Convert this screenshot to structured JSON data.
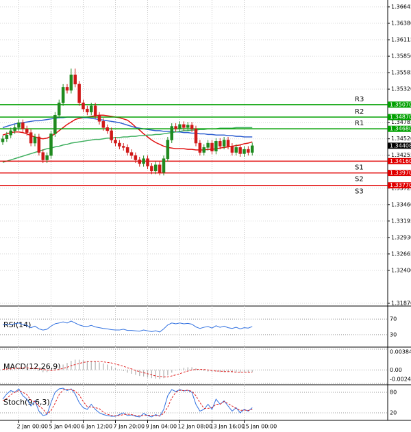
{
  "chart_data": {
    "type": "candlestick",
    "categories": [
      null,
      null,
      null,
      null,
      "2 Jan 00:00",
      null,
      null,
      null,
      null,
      null,
      null,
      null,
      "5 Jan 04:00",
      null,
      null,
      null,
      null,
      null,
      null,
      null,
      "6 Jan 12:00",
      null,
      null,
      null,
      null,
      null,
      null,
      null,
      "7 Jan 20:00",
      null,
      null,
      null,
      null,
      null,
      null,
      null,
      "9 Jan 04:00",
      null,
      null,
      null,
      null,
      null,
      null,
      null,
      "12 Jan 08:00",
      null,
      null,
      null,
      null,
      null,
      null,
      null,
      "13 Jan 16:00",
      null,
      null,
      null,
      null,
      null,
      null,
      null,
      "15 Jan 00:00",
      null,
      null
    ],
    "open": [
      1.3447,
      1.3452,
      1.3458,
      1.3465,
      1.347,
      1.3478,
      1.3468,
      1.3462,
      1.3445,
      1.3455,
      1.343,
      1.3418,
      1.3425,
      1.346,
      1.349,
      1.351,
      1.3535,
      1.353,
      1.3555,
      1.354,
      1.351,
      1.35,
      1.3495,
      1.3505,
      1.349,
      1.348,
      1.347,
      1.3465,
      1.345,
      1.3445,
      1.344,
      1.3438,
      1.343,
      1.3425,
      1.3418,
      1.3412,
      1.342,
      1.3408,
      1.34,
      1.341,
      1.3398,
      1.342,
      1.345,
      1.3472,
      1.3468,
      1.3475,
      1.347,
      1.3474,
      1.3468,
      1.3445,
      1.343,
      1.3438,
      1.3445,
      1.3432,
      1.3448,
      1.344,
      1.345,
      1.344,
      1.343,
      1.3438,
      1.3428,
      1.3435,
      1.343
    ],
    "high": [
      1.3457,
      1.3463,
      1.347,
      1.3475,
      1.3483,
      1.3483,
      1.3473,
      1.3467,
      1.346,
      1.346,
      1.3435,
      1.343,
      1.3465,
      1.3495,
      1.3515,
      1.354,
      1.354,
      1.3565,
      1.3565,
      1.3545,
      1.3515,
      1.3505,
      1.351,
      1.351,
      1.3495,
      1.3485,
      1.3475,
      1.347,
      1.3455,
      1.345,
      1.3445,
      1.3443,
      1.3435,
      1.343,
      1.3423,
      1.3425,
      1.3425,
      1.3413,
      1.3415,
      1.3415,
      1.3425,
      1.3455,
      1.3477,
      1.3477,
      1.348,
      1.348,
      1.3479,
      1.3479,
      1.3473,
      1.345,
      1.3443,
      1.345,
      1.345,
      1.3453,
      1.3453,
      1.3455,
      1.3455,
      1.3445,
      1.3443,
      1.3443,
      1.344,
      1.344,
      1.34458
    ],
    "low": [
      1.3442,
      1.3447,
      1.3453,
      1.346,
      1.3465,
      1.3463,
      1.3457,
      1.344,
      1.344,
      1.3425,
      1.3413,
      1.3413,
      1.342,
      1.3455,
      1.3485,
      1.3505,
      1.3525,
      1.3525,
      1.3535,
      1.3505,
      1.3495,
      1.349,
      1.349,
      1.3485,
      1.3475,
      1.3465,
      1.346,
      1.3445,
      1.344,
      1.3435,
      1.3433,
      1.3425,
      1.342,
      1.3413,
      1.3407,
      1.3407,
      1.3403,
      1.3395,
      1.3395,
      1.3393,
      1.3393,
      1.3415,
      1.3445,
      1.3463,
      1.3463,
      1.3465,
      1.3465,
      1.3463,
      1.344,
      1.3425,
      1.3425,
      1.3433,
      1.3427,
      1.3427,
      1.3435,
      1.3435,
      1.3435,
      1.3425,
      1.3425,
      1.3423,
      1.3423,
      1.3425,
      1.3425
    ],
    "close": [
      1.3452,
      1.3458,
      1.3465,
      1.347,
      1.3478,
      1.3468,
      1.3462,
      1.3445,
      1.3455,
      1.343,
      1.3418,
      1.3425,
      1.346,
      1.349,
      1.351,
      1.3535,
      1.353,
      1.3555,
      1.354,
      1.351,
      1.35,
      1.3495,
      1.3505,
      1.349,
      1.348,
      1.347,
      1.3465,
      1.345,
      1.3445,
      1.344,
      1.3438,
      1.343,
      1.3425,
      1.3418,
      1.3412,
      1.342,
      1.3408,
      1.34,
      1.341,
      1.3398,
      1.342,
      1.345,
      1.3472,
      1.3468,
      1.3475,
      1.347,
      1.3474,
      1.3468,
      1.3445,
      1.343,
      1.3438,
      1.3445,
      1.3432,
      1.3448,
      1.344,
      1.345,
      1.344,
      1.343,
      1.3438,
      1.3428,
      1.3435,
      1.343,
      1.34408
    ],
    "up_color": "#1f8a1f",
    "down_color": "#d01818",
    "ylim": [
      1.3187,
      1.36645
    ],
    "yticks": [
      1.36645,
      {
        "value": 1.3638,
        "label": "1.36380"
      },
      1.36115,
      {
        "value": 1.3585,
        "label": "1.35850"
      },
      1.35585,
      {
        "value": 1.3532,
        "label": "1.35320"
      },
      1.34785,
      {
        "value": 1.3452,
        "label": "1.34520"
      },
      1.34255,
      1.33725,
      {
        "value": 1.3346,
        "label": "1.33460"
      },
      1.33195,
      {
        "value": 1.3293,
        "label": "1.32930"
      },
      1.32665,
      {
        "value": 1.324,
        "label": "1.32400"
      },
      {
        "value": 1.3187,
        "label": "1.31870"
      }
    ],
    "grid": true,
    "overlays": [
      {
        "color": "#e01010",
        "values": [
          1.3458,
          1.346,
          1.3462,
          1.3463,
          1.3463,
          1.3462,
          1.346,
          1.3457,
          1.3455,
          1.3453,
          1.3452,
          1.3453,
          1.3456,
          1.346,
          1.3465,
          1.347,
          1.3475,
          1.3479,
          1.3483,
          1.3485,
          1.3486,
          1.3487,
          1.3488,
          1.3489,
          1.349,
          1.349,
          1.3489,
          1.3488,
          1.3487,
          1.3486,
          1.3484,
          1.3482,
          1.3477,
          1.3471,
          1.3466,
          1.346,
          1.3455,
          1.345,
          1.3446,
          1.3443,
          1.344,
          1.3438,
          1.3437,
          1.3436,
          1.3436,
          1.3436,
          1.3435,
          1.3435,
          1.3434,
          1.3434,
          1.3434,
          1.3435,
          1.3435,
          1.3436,
          1.3437,
          1.3438,
          1.3439,
          1.344,
          1.3441,
          1.3442,
          1.3444,
          1.3445,
          1.3447
        ]
      },
      {
        "color": "#3060d0",
        "values": [
          1.347,
          1.3472,
          1.3474,
          1.3476,
          1.3477,
          1.3478,
          1.3479,
          1.348,
          1.3481,
          1.3481,
          1.3482,
          1.3483,
          1.3484,
          1.3485,
          1.3486,
          1.3486,
          1.3487,
          1.3487,
          1.3487,
          1.3487,
          1.3486,
          1.3486,
          1.3485,
          1.3484,
          1.3483,
          1.3482,
          1.3481,
          1.348,
          1.3479,
          1.3478,
          1.3476,
          1.3474,
          1.3472,
          1.347,
          1.3469,
          1.3468,
          1.3467,
          1.3466,
          1.3465,
          1.3465,
          1.3464,
          1.3464,
          1.3464,
          1.3463,
          1.3463,
          1.3462,
          1.3462,
          1.3461,
          1.3461,
          1.346,
          1.346,
          1.3459,
          1.3459,
          1.3458,
          1.3458,
          1.3458,
          1.3457,
          1.3457,
          1.3456,
          1.3456,
          1.3455,
          1.3455,
          1.3455
        ]
      },
      {
        "color": "#40b060",
        "values": [
          1.3414,
          1.3416,
          1.3418,
          1.342,
          1.3422,
          1.3424,
          1.3426,
          1.3428,
          1.343,
          1.3432,
          1.3434,
          1.3436,
          1.3437,
          1.3439,
          1.344,
          1.3442,
          1.3443,
          1.3445,
          1.3446,
          1.3447,
          1.3448,
          1.3449,
          1.345,
          1.3451,
          1.3451,
          1.3452,
          1.3453,
          1.3453,
          1.3454,
          1.3454,
          1.3455,
          1.3455,
          1.3456,
          1.3456,
          1.3457,
          1.3457,
          1.3458,
          1.3458,
          1.3459,
          1.3459,
          1.346,
          1.3461,
          1.3462,
          1.3463,
          1.3464,
          1.3465,
          1.3465,
          1.3466,
          1.3466,
          1.3467,
          1.3467,
          1.3468,
          1.3468,
          1.3468,
          1.3469,
          1.3469,
          1.3469,
          1.3469,
          1.347,
          1.347,
          1.347,
          1.347,
          1.347
        ]
      }
    ],
    "levels": [
      {
        "name": "R3",
        "value": 1.3507,
        "label": "1.35070",
        "color": "#00a000"
      },
      {
        "name": "R2",
        "value": 1.3487,
        "label": "1.34870",
        "color": "#00a000"
      },
      {
        "name": "R1",
        "value": 1.3468,
        "label": "1.34680",
        "color": "#00a000"
      },
      {
        "name": "S1",
        "value": 1.3416,
        "label": "1.34160",
        "color": "#e00000"
      },
      {
        "name": "S2",
        "value": 1.3397,
        "label": "1.33970",
        "color": "#e00000"
      },
      {
        "name": "S3",
        "value": 1.3377,
        "label": "1.33770",
        "color": "#e00000"
      }
    ],
    "indicators": [
      {
        "title": "RSI(14)",
        "ylim": [
          0,
          100
        ],
        "yticks": [
          70,
          30
        ],
        "lines": [
          {
            "color": "#3070e0",
            "dash": false,
            "values": [
              55,
              57,
              56,
              58,
              60,
              56,
              54,
              48,
              52,
              45,
              42,
              44,
              52,
              58,
              60,
              63,
              60,
              65,
              60,
              55,
              52,
              51,
              54,
              50,
              48,
              46,
              45,
              43,
              42,
              42,
              44,
              41,
              41,
              40,
              39,
              42,
              40,
              38,
              40,
              37,
              45,
              55,
              60,
              58,
              60,
              58,
              59,
              57,
              50,
              46,
              49,
              51,
              47,
              53,
              49,
              52,
              48,
              46,
              49,
              45,
              48,
              47,
              51
            ]
          }
        ]
      },
      {
        "title": "MACD(12,26,9)",
        "ylim": [
          -0.002479,
          0.003848
        ],
        "yticks": [
          0.003848,
          {
            "value": 0,
            "label": "0.00"
          },
          -0.002479
        ],
        "histogram": {
          "color": "#b0b0b0",
          "values": [
            0.0002,
            0.0003,
            0.0003,
            0.0004,
            0.0005,
            0.0004,
            0.0003,
            0.0001,
            0.0001,
            -0.0002,
            -0.0004,
            -0.0004,
            -0.0002,
            0.0002,
            0.0006,
            0.001,
            0.0013,
            0.0017,
            0.0019,
            0.0019,
            0.0018,
            0.0017,
            0.0017,
            0.0016,
            0.0014,
            0.0012,
            0.001,
            0.0007,
            0.0004,
            0.0001,
            -0.0002,
            -0.0005,
            -0.0007,
            -0.0009,
            -0.0011,
            -0.0012,
            -0.0014,
            -0.0015,
            -0.0016,
            -0.0017,
            -0.0015,
            -0.001,
            -0.0005,
            -0.0001,
            0.0002,
            0.0004,
            0.0005,
            0.0005,
            0.0003,
            0.0,
            -0.0002,
            -0.0003,
            -0.0004,
            -0.0003,
            -0.0004,
            -0.0004,
            -0.0004,
            -0.0005,
            -0.0005,
            -0.0005,
            -0.0005,
            -0.0005,
            -0.0004
          ]
        },
        "lines": [
          {
            "color": "#e02020",
            "dash": true,
            "values": [
              0.0001,
              0.0002,
              0.0002,
              0.0003,
              0.0003,
              0.0004,
              0.0004,
              0.0003,
              0.0003,
              0.0002,
              0.0001,
              0.0,
              -0.0001,
              0.0,
              0.0001,
              0.0003,
              0.0005,
              0.0008,
              0.001,
              0.0012,
              0.0014,
              0.0015,
              0.0016,
              0.0016,
              0.0016,
              0.0015,
              0.0014,
              0.0013,
              0.0011,
              0.0009,
              0.0007,
              0.0004,
              0.0002,
              -0.0001,
              -0.0003,
              -0.0005,
              -0.0007,
              -0.0009,
              -0.0011,
              -0.0012,
              -0.0013,
              -0.0013,
              -0.0011,
              -0.0009,
              -0.0007,
              -0.0004,
              -0.0002,
              0.0,
              0.0001,
              0.0001,
              0.0001,
              0.0,
              -0.0001,
              -0.0002,
              -0.0002,
              -0.0003,
              -0.0003,
              -0.0003,
              -0.0004,
              -0.0004,
              -0.0004,
              -0.0004,
              -0.0004
            ]
          }
        ]
      },
      {
        "title": "Stoch(9,6,3)",
        "ylim": [
          0,
          100
        ],
        "yticks": [
          80,
          20
        ],
        "lines": [
          {
            "color": "#3070e0",
            "dash": false,
            "values": [
              60,
              75,
              85,
              80,
              90,
              70,
              60,
              40,
              55,
              25,
              12,
              15,
              50,
              80,
              90,
              92,
              85,
              90,
              75,
              50,
              35,
              30,
              45,
              30,
              20,
              15,
              12,
              10,
              10,
              15,
              20,
              12,
              14,
              10,
              8,
              18,
              12,
              8,
              15,
              10,
              30,
              70,
              88,
              82,
              88,
              84,
              86,
              80,
              45,
              25,
              30,
              45,
              30,
              60,
              45,
              55,
              40,
              25,
              35,
              20,
              30,
              25,
              35
            ]
          },
          {
            "color": "#e02020",
            "dash": true,
            "values": [
              55,
              62,
              73,
              80,
              85,
              80,
              73,
              57,
              52,
              40,
              31,
              17,
              26,
              48,
              73,
              87,
              89,
              89,
              83,
              72,
              53,
              38,
              37,
              35,
              32,
              22,
              16,
              12,
              11,
              12,
              15,
              16,
              15,
              12,
              11,
              12,
              13,
              13,
              12,
              11,
              18,
              37,
              63,
              80,
              86,
              85,
              86,
              83,
              70,
              50,
              33,
              33,
              35,
              45,
              45,
              53,
              47,
              40,
              33,
              27,
              28,
              27,
              30
            ]
          }
        ]
      }
    ]
  }
}
